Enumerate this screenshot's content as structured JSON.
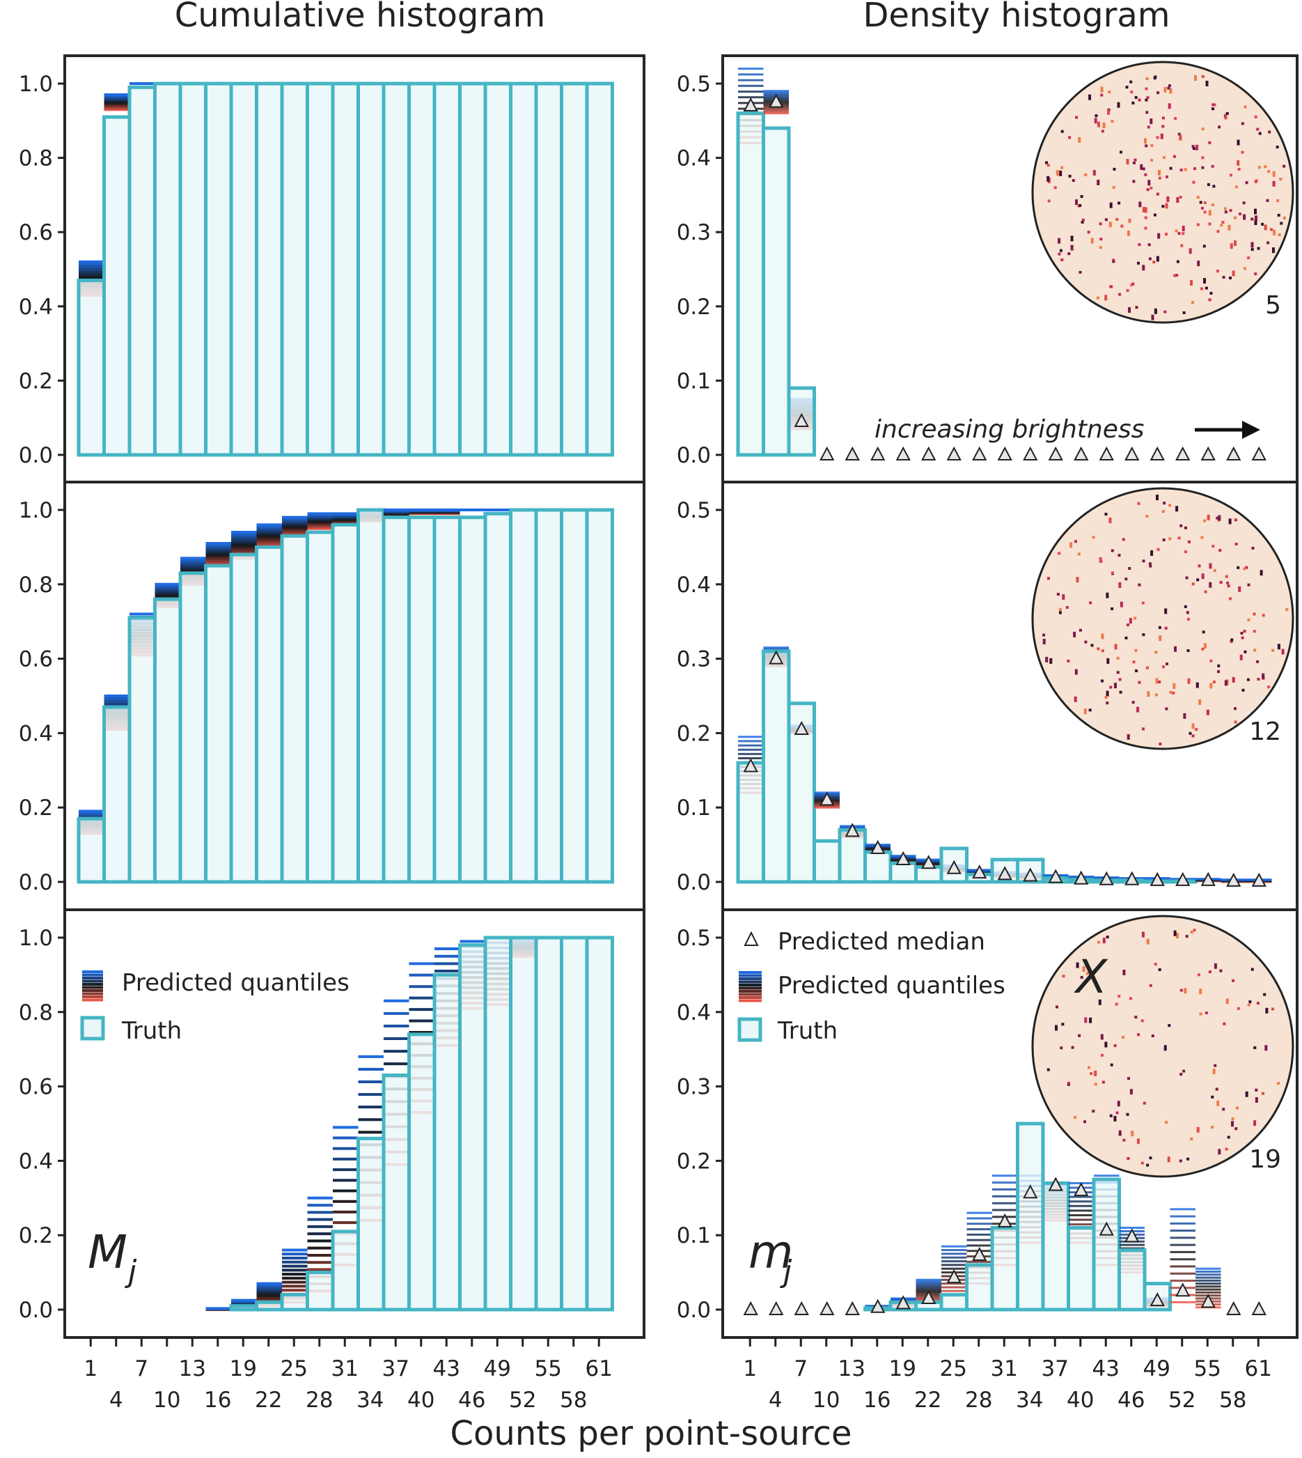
{
  "titles": {
    "cumulative": "Cumulative histogram",
    "density": "Density histogram",
    "xlabel": "Counts per point-source"
  },
  "colors": {
    "truth_edge": "#45b5c4",
    "truth_fill": "#eaf7f9",
    "quantile_high": "#1f6be0",
    "quantile_mid": "#151515",
    "quantile_low": "#e8564a",
    "panel_border": "#262626",
    "inset_bg": "#f7e3d3"
  },
  "xticks": {
    "top_row": [
      "1",
      "7",
      "13",
      "19",
      "25",
      "31",
      "37",
      "43",
      "49",
      "55",
      "61"
    ],
    "bottom_row": [
      "4",
      "10",
      "16",
      "22",
      "28",
      "34",
      "40",
      "46",
      "52",
      "58"
    ]
  },
  "legends": {
    "cumulative": [
      "Predicted quantiles",
      "Truth"
    ],
    "density": [
      "Predicted median",
      "Predicted quantiles",
      "Truth"
    ]
  },
  "annotations": {
    "brightness": "increasing brightness",
    "cumulative_symbol": "M",
    "cumulative_sub": "j",
    "density_symbol": "m",
    "density_sub": "j",
    "inset_symbol": "X"
  },
  "inset_labels": [
    "5",
    "12",
    "19"
  ],
  "chart_data": {
    "type": "bar",
    "categories": [
      1,
      4,
      7,
      10,
      13,
      16,
      19,
      22,
      25,
      28,
      31,
      34,
      37,
      40,
      43,
      46,
      49,
      52,
      55,
      58,
      61
    ],
    "yticks": [
      "0.0",
      "0.2",
      "0.4",
      "0.6",
      "0.8",
      "1.0"
    ],
    "yticks_density": [
      "0.0",
      "0.1",
      "0.2",
      "0.3",
      "0.4",
      "0.5"
    ],
    "rows": [
      {
        "inset_label": "5",
        "cumulative": {
          "ylim": [
            0,
            1.05
          ],
          "truth": [
            0.47,
            0.91,
            0.99,
            1,
            1,
            1,
            1,
            1,
            1,
            1,
            1,
            1,
            1,
            1,
            1,
            1,
            1,
            1,
            1,
            1,
            1
          ],
          "q_low": [
            0.43,
            0.93,
            1,
            1,
            1,
            1,
            1,
            1,
            1,
            1,
            1,
            1,
            1,
            1,
            1,
            1,
            1,
            1,
            1,
            1,
            1
          ],
          "q_high": [
            0.52,
            0.97,
            1,
            1,
            1,
            1,
            1,
            1,
            1,
            1,
            1,
            1,
            1,
            1,
            1,
            1,
            1,
            1,
            1,
            1,
            1
          ]
        },
        "density": {
          "ylim": [
            0,
            0.55
          ],
          "truth": [
            0.46,
            0.44,
            0.09,
            0,
            0,
            0,
            0,
            0,
            0,
            0,
            0,
            0,
            0,
            0,
            0,
            0,
            0,
            0,
            0,
            0,
            0
          ],
          "median": [
            0.47,
            0.475,
            0.045,
            0,
            0,
            0,
            0,
            0,
            0,
            0,
            0,
            0,
            0,
            0,
            0,
            0,
            0,
            0,
            0,
            0,
            0
          ],
          "q_low": [
            0.42,
            0.46,
            0.035,
            0,
            0,
            0,
            0,
            0,
            0,
            0,
            0,
            0,
            0,
            0,
            0,
            0,
            0,
            0,
            0,
            0,
            0
          ],
          "q_high": [
            0.52,
            0.49,
            0.075,
            0,
            0,
            0,
            0,
            0,
            0,
            0,
            0,
            0,
            0,
            0,
            0,
            0,
            0,
            0,
            0,
            0,
            0
          ]
        }
      },
      {
        "inset_label": "12",
        "cumulative": {
          "ylim": [
            0,
            1.05
          ],
          "truth": [
            0.17,
            0.47,
            0.71,
            0.76,
            0.83,
            0.85,
            0.88,
            0.9,
            0.93,
            0.94,
            0.96,
            1,
            0.98,
            0.98,
            0.98,
            0.98,
            0.99,
            1,
            1,
            1,
            1
          ],
          "q_low": [
            0.13,
            0.41,
            0.61,
            0.74,
            0.8,
            0.85,
            0.87,
            0.9,
            0.93,
            0.95,
            0.96,
            0.97,
            0.98,
            0.99,
            0.99,
            1,
            1,
            1,
            1,
            1,
            1
          ],
          "q_high": [
            0.19,
            0.5,
            0.72,
            0.8,
            0.87,
            0.91,
            0.94,
            0.96,
            0.98,
            0.99,
            0.99,
            1,
            1,
            1,
            1,
            1,
            1,
            1,
            1,
            1,
            1
          ]
        },
        "density": {
          "ylim": [
            0,
            0.55
          ],
          "truth": [
            0.16,
            0.31,
            0.24,
            0.055,
            0.07,
            0.04,
            0.025,
            0.02,
            0.045,
            0.01,
            0.03,
            0.03,
            0.005,
            0.003,
            0.002,
            0.002,
            0.001,
            0.001,
            0,
            0,
            0
          ],
          "median": [
            0.155,
            0.3,
            0.205,
            0.11,
            0.068,
            0.045,
            0.03,
            0.025,
            0.018,
            0.012,
            0.01,
            0.008,
            0.006,
            0.004,
            0.003,
            0.003,
            0.002,
            0.002,
            0.002,
            0.001,
            0.001
          ],
          "q_low": [
            0.12,
            0.29,
            0.2,
            0.1,
            0.06,
            0.04,
            0.025,
            0.02,
            0.014,
            0.01,
            0.007,
            0.005,
            0.004,
            0.003,
            0.002,
            0.002,
            0.001,
            0.001,
            0.001,
            0,
            0
          ],
          "q_high": [
            0.195,
            0.315,
            0.21,
            0.12,
            0.075,
            0.05,
            0.035,
            0.03,
            0.022,
            0.016,
            0.013,
            0.011,
            0.009,
            0.007,
            0.006,
            0.005,
            0.005,
            0.004,
            0.004,
            0.003,
            0.003
          ]
        }
      },
      {
        "inset_label": "19",
        "cumulative": {
          "ylim": [
            0,
            1.05
          ],
          "truth": [
            0,
            0,
            0,
            0,
            0,
            0,
            0.01,
            0.02,
            0.04,
            0.1,
            0.21,
            0.46,
            0.63,
            0.74,
            0.9,
            0.98,
            1,
            1,
            1,
            1,
            1
          ],
          "q_low": [
            0,
            0,
            0,
            0,
            0,
            0,
            0.005,
            0.01,
            0.02,
            0.05,
            0.12,
            0.24,
            0.39,
            0.53,
            0.71,
            0.81,
            0.82,
            0.95,
            1,
            1,
            1
          ],
          "q_high": [
            0,
            0,
            0,
            0,
            0,
            0.003,
            0.025,
            0.07,
            0.16,
            0.3,
            0.49,
            0.68,
            0.83,
            0.93,
            0.97,
            0.99,
            1,
            1,
            1,
            1,
            1
          ]
        },
        "density": {
          "ylim": [
            0,
            0.55
          ],
          "truth": [
            0,
            0,
            0,
            0,
            0,
            0.002,
            0.01,
            0.01,
            0.02,
            0.06,
            0.11,
            0.25,
            0.17,
            0.11,
            0.175,
            0.08,
            0.035,
            0,
            0,
            0,
            0
          ],
          "median": [
            0,
            0,
            0,
            0,
            0,
            0.003,
            0.008,
            0.015,
            0.043,
            0.073,
            0.118,
            0.157,
            0.167,
            0.16,
            0.107,
            0.098,
            0.012,
            0.025,
            0.01,
            0,
            0
          ],
          "q_low": [
            0,
            0,
            0,
            0,
            0,
            0.001,
            0.005,
            0.01,
            0.02,
            0.035,
            0.06,
            0.09,
            0.12,
            0.09,
            0.06,
            0.05,
            0.005,
            0.01,
            0.003,
            0,
            0
          ],
          "q_high": [
            0,
            0,
            0,
            0,
            0,
            0.005,
            0.015,
            0.04,
            0.085,
            0.13,
            0.18,
            0.18,
            0.17,
            0.17,
            0.18,
            0.11,
            0.015,
            0.135,
            0.055,
            0,
            0
          ]
        }
      }
    ]
  }
}
